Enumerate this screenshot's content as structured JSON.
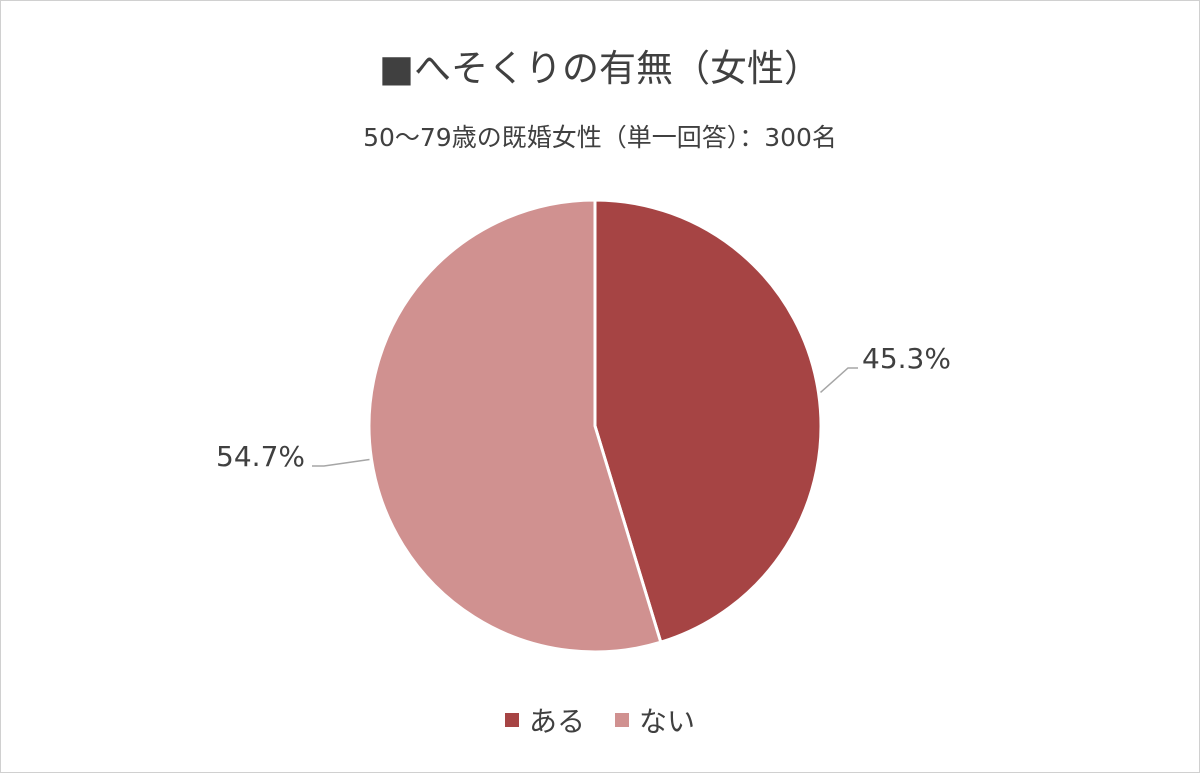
{
  "chart_data": {
    "type": "pie",
    "title": "■へそくりの有無（女性）",
    "subtitle": "50～79歳の既婚女性（単一回答）：300名",
    "slices": [
      {
        "label": "ある",
        "value": 45.3,
        "display": "45.3%",
        "color": "#a64444"
      },
      {
        "label": "ない",
        "value": 54.7,
        "display": "54.7%",
        "color": "#d09190"
      }
    ],
    "legend_position": "bottom"
  }
}
